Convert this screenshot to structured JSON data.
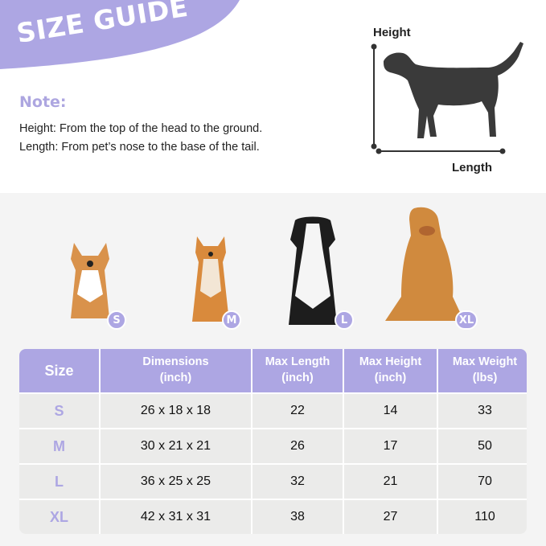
{
  "header": {
    "title": "SIZE GUIDE"
  },
  "note": {
    "title": "Note:",
    "lines": [
      "Height: From the top of the head to the ground.",
      "Length: From pet’s nose to the base of the tail."
    ]
  },
  "diagram": {
    "height_label": "Height",
    "length_label": "Length"
  },
  "dogs": [
    {
      "breed_icon": "corgi",
      "size": "S"
    },
    {
      "breed_icon": "shiba-inu",
      "size": "M"
    },
    {
      "breed_icon": "border-collie",
      "size": "L"
    },
    {
      "breed_icon": "golden-retriever",
      "size": "XL"
    }
  ],
  "table": {
    "headers": [
      [
        "Size"
      ],
      [
        "Dimensions",
        "(inch)"
      ],
      [
        "Max Length",
        "(inch)"
      ],
      [
        "Max Height",
        "(inch)"
      ],
      [
        "Max Weight",
        "(lbs)"
      ]
    ],
    "rows": [
      [
        "S",
        "26 x 18 x 18",
        "22",
        "14",
        "33"
      ],
      [
        "M",
        "30 x 21 x 21",
        "26",
        "17",
        "50"
      ],
      [
        "L",
        "36 x 25 x 25",
        "32",
        "21",
        "70"
      ],
      [
        "XL",
        "42 x 31 x 31",
        "38",
        "27",
        "110"
      ]
    ]
  },
  "colors": {
    "accent": "#ada6e3",
    "cell": "#ebebea",
    "section_bg": "#f4f4f4"
  }
}
